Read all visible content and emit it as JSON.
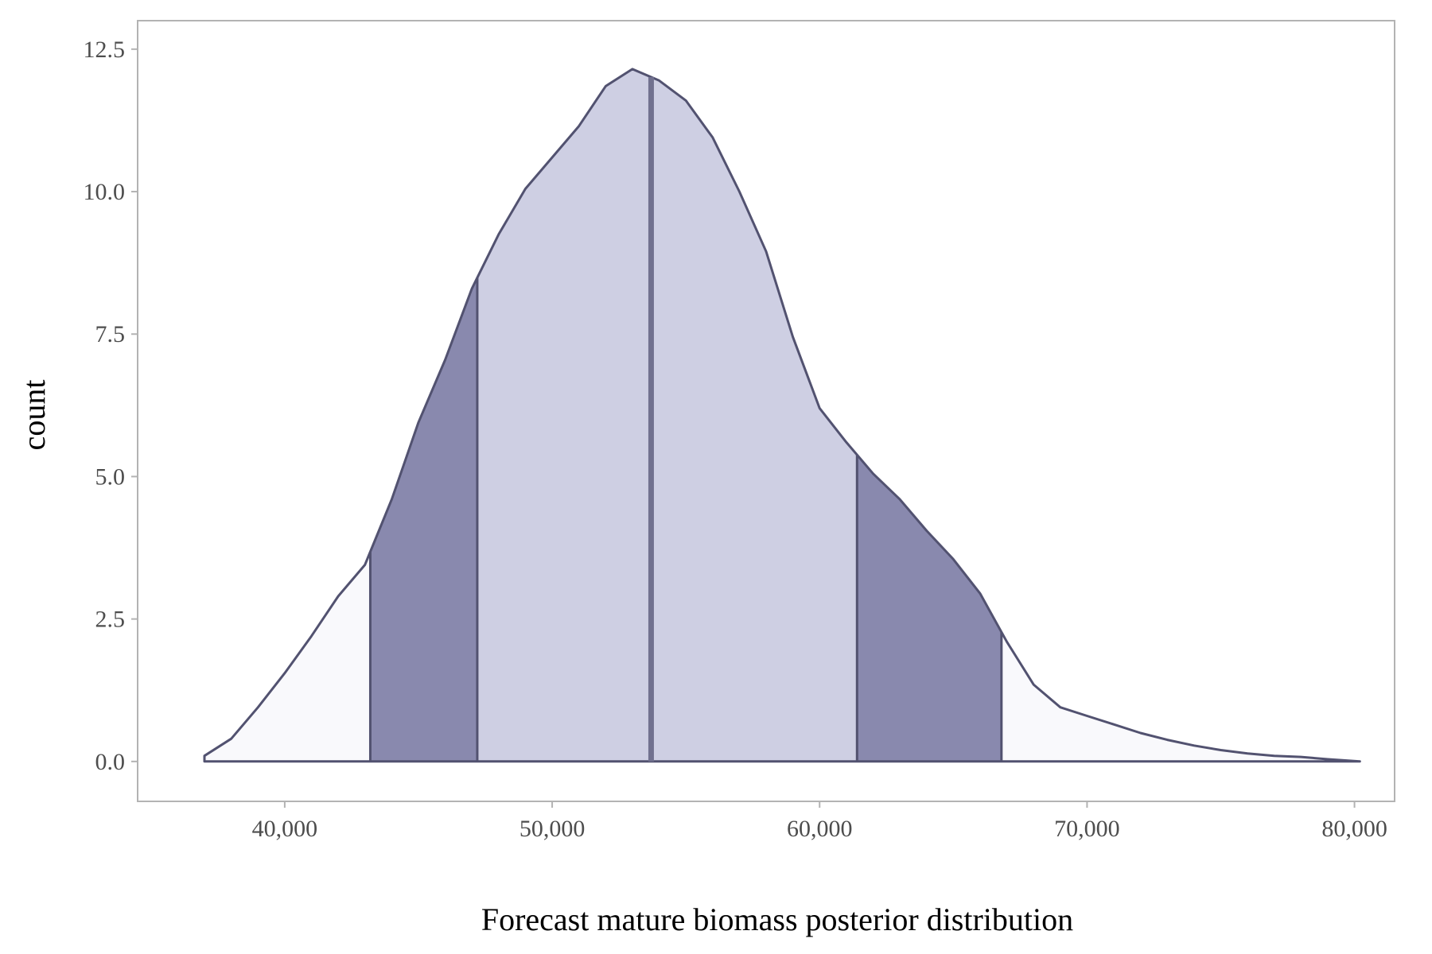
{
  "chart_data": {
    "type": "area",
    "xlabel": "Forecast mature biomass posterior distribution",
    "ylabel": "count",
    "xlim": [
      34500,
      81500
    ],
    "ylim": [
      -0.7,
      13.0
    ],
    "x_ticks": [
      40000,
      50000,
      60000,
      70000,
      80000
    ],
    "x_tick_labels": [
      "40,000",
      "50,000",
      "60,000",
      "70,000",
      "80,000"
    ],
    "y_ticks": [
      0,
      2.5,
      5,
      7.5,
      10,
      12.5
    ],
    "y_tick_labels": [
      "0.0",
      "2.5",
      "5.0",
      "7.5",
      "10.0",
      "12.5"
    ],
    "grid": false,
    "density": {
      "x": [
        37000,
        38000,
        39000,
        40000,
        41000,
        42000,
        43000,
        44000,
        45000,
        46000,
        47000,
        48000,
        49000,
        50000,
        51000,
        52000,
        53000,
        54000,
        55000,
        56000,
        57000,
        58000,
        59000,
        60000,
        61000,
        62000,
        63000,
        64000,
        65000,
        66000,
        67000,
        68000,
        69000,
        70000,
        71000,
        72000,
        73000,
        74000,
        75000,
        76000,
        77000,
        78000,
        79000,
        80200
      ],
      "y": [
        0.1,
        0.4,
        0.95,
        1.55,
        2.2,
        2.9,
        3.45,
        4.6,
        5.95,
        7.05,
        8.3,
        9.25,
        10.05,
        10.6,
        11.15,
        11.85,
        12.15,
        11.95,
        11.6,
        10.95,
        10.0,
        8.95,
        7.45,
        6.2,
        5.6,
        5.05,
        4.6,
        4.05,
        3.55,
        2.95,
        2.1,
        1.35,
        0.95,
        0.8,
        0.65,
        0.5,
        0.38,
        0.28,
        0.2,
        0.14,
        0.1,
        0.08,
        0.04,
        0.0
      ]
    },
    "quantiles": {
      "outer_low": 43200,
      "inner_low": 47200,
      "median": 53700,
      "inner_high": 61400,
      "outer_high": 66800
    },
    "colors": {
      "tail_fill": "#f9f9fc",
      "inner_fill": "#cecfe3",
      "middle_fill": "#8989ae",
      "outline": "#525270",
      "median_line": "#71718f",
      "axis_line": "#b3b3b3",
      "tick_text": "#4d4d4d"
    }
  }
}
